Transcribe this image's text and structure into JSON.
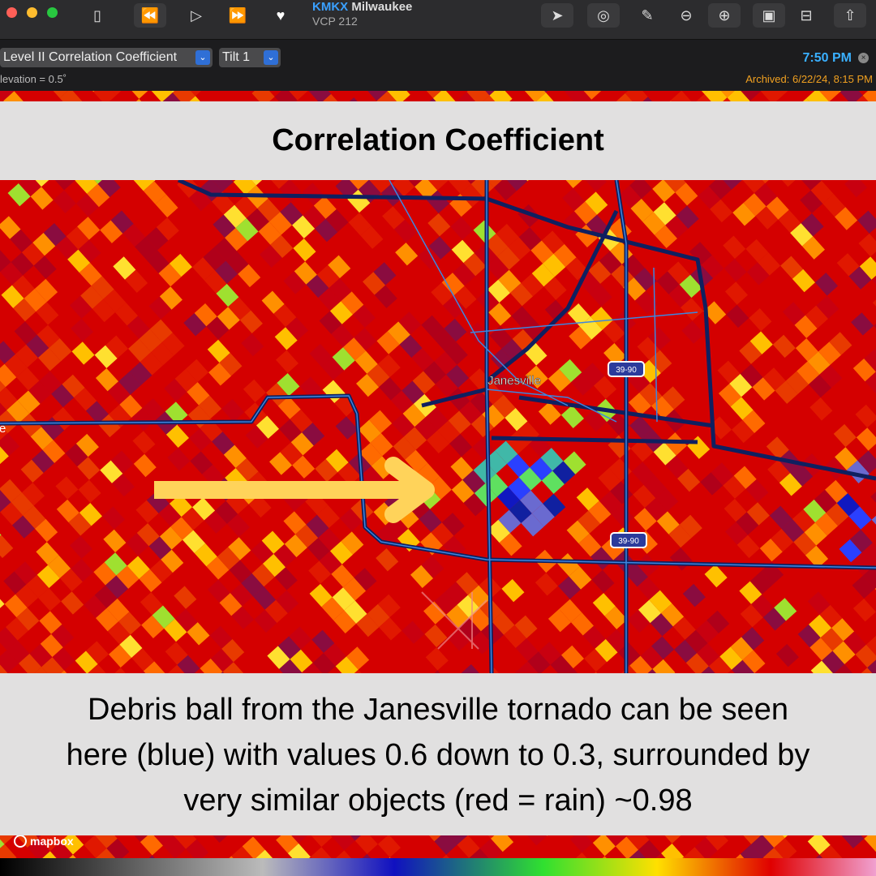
{
  "toolbar": {
    "station": "KMKX",
    "city": "Milwaukee",
    "vcp": "VCP 212",
    "product": "Level II Correlation Coefficient",
    "tilt": "Tilt 1",
    "elevation": "levation = 0.5˚",
    "time": "7:50 PM",
    "archived": "Archived: 6/22/24, 8:15 PM"
  },
  "title": "Correlation Coefficient",
  "map": {
    "city_label": "Janesville",
    "edge_label": "e",
    "shields": [
      "39-90",
      "39-90"
    ],
    "attribution": "mapbox"
  },
  "caption": {
    "lines": [
      "Debris ball from the Janesville tornado can be seen",
      "here (blue) with values 0.6 down to 0.3, surrounded by",
      "very similar objects (red = rain) ~0.98"
    ]
  }
}
